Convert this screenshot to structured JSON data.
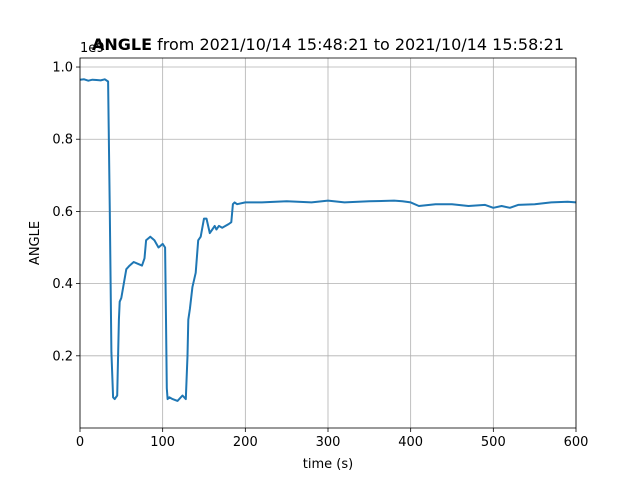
{
  "chart_data": {
    "type": "line",
    "title": {
      "bold": "ANGLE",
      "rest": " from 2021/10/14 15:48:21 to 2021/10/14 15:58:21"
    },
    "xlabel": "time (s)",
    "ylabel": "ANGLE",
    "offset_text": "1e9",
    "xlim": [
      0,
      600
    ],
    "ylim": [
      0,
      1.025
    ],
    "xticks": [
      0,
      100,
      200,
      300,
      400,
      500,
      600
    ],
    "xtick_labels": [
      "0",
      "100",
      "200",
      "300",
      "400",
      "500",
      "600"
    ],
    "yticks": [
      0.2,
      0.4,
      0.6,
      0.8,
      1.0
    ],
    "ytick_labels": [
      "0.2",
      "0.4",
      "0.6",
      "0.8",
      "1.0"
    ],
    "grid": true,
    "series_color": "#1f77b4",
    "series": [
      {
        "x": [
          0,
          5,
          10,
          15,
          20,
          25,
          30,
          34,
          36,
          38,
          40,
          42,
          45,
          47,
          48,
          50,
          53,
          56,
          60,
          65,
          70,
          75,
          78,
          80,
          85,
          90,
          95,
          100,
          103,
          104,
          105,
          106,
          108,
          112,
          118,
          124,
          128,
          130,
          131,
          133,
          136,
          140,
          143,
          146,
          150,
          153,
          157,
          160,
          163,
          165,
          168,
          172,
          176,
          180,
          183,
          185,
          187,
          190,
          200,
          220,
          250,
          280,
          300,
          320,
          350,
          380,
          390,
          400,
          410,
          430,
          450,
          470,
          490,
          500,
          510,
          520,
          530,
          550,
          570,
          590,
          600
        ],
        "y": [
          0.965,
          0.966,
          0.962,
          0.965,
          0.964,
          0.963,
          0.966,
          0.96,
          0.6,
          0.21,
          0.085,
          0.08,
          0.09,
          0.3,
          0.35,
          0.36,
          0.4,
          0.44,
          0.45,
          0.46,
          0.455,
          0.45,
          0.47,
          0.52,
          0.53,
          0.52,
          0.5,
          0.51,
          0.5,
          0.3,
          0.11,
          0.08,
          0.085,
          0.08,
          0.075,
          0.09,
          0.08,
          0.2,
          0.3,
          0.33,
          0.39,
          0.43,
          0.52,
          0.53,
          0.58,
          0.58,
          0.54,
          0.55,
          0.56,
          0.55,
          0.56,
          0.555,
          0.56,
          0.565,
          0.57,
          0.62,
          0.625,
          0.62,
          0.625,
          0.625,
          0.628,
          0.625,
          0.63,
          0.625,
          0.628,
          0.63,
          0.628,
          0.625,
          0.615,
          0.62,
          0.62,
          0.615,
          0.618,
          0.61,
          0.615,
          0.61,
          0.618,
          0.62,
          0.625,
          0.627,
          0.625
        ]
      }
    ]
  }
}
